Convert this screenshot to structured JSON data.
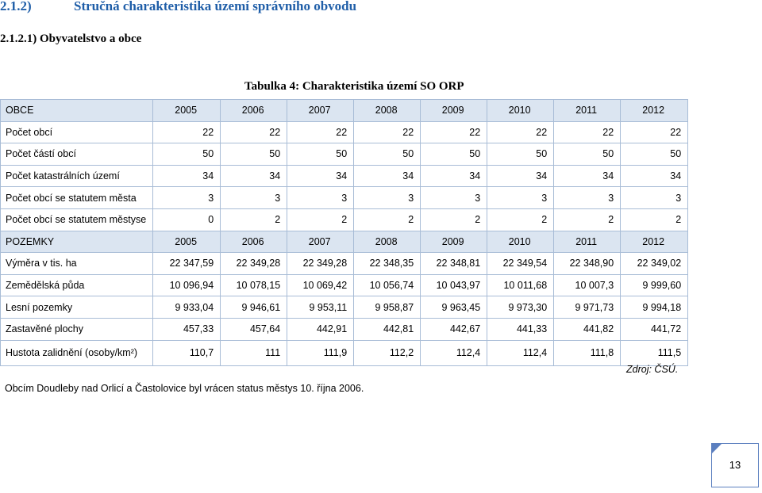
{
  "heading": {
    "number": "2.1.2)",
    "title": "Stručná charakteristika území správního obvodu"
  },
  "subheading": "2.1.2.1)  Obyvatelstvo a obce",
  "table_caption": "Tabulka 4: Charakteristika území SO ORP",
  "table": {
    "rows": [
      {
        "header": true,
        "label": "OBCE",
        "values": [
          "2005",
          "2006",
          "2007",
          "2008",
          "2009",
          "2010",
          "2011",
          "2012"
        ]
      },
      {
        "label": "Počet obcí",
        "values": [
          "22",
          "22",
          "22",
          "22",
          "22",
          "22",
          "22",
          "22"
        ]
      },
      {
        "label": "Počet částí obcí",
        "values": [
          "50",
          "50",
          "50",
          "50",
          "50",
          "50",
          "50",
          "50"
        ]
      },
      {
        "label": "Počet katastrálních území",
        "values": [
          "34",
          "34",
          "34",
          "34",
          "34",
          "34",
          "34",
          "34"
        ]
      },
      {
        "label": "Počet obcí se statutem města",
        "values": [
          "3",
          "3",
          "3",
          "3",
          "3",
          "3",
          "3",
          "3"
        ]
      },
      {
        "label": "Počet obcí se statutem městyse",
        "values": [
          "0",
          "2",
          "2",
          "2",
          "2",
          "2",
          "2",
          "2"
        ]
      },
      {
        "header": true,
        "label": "POZEMKY",
        "values": [
          "2005",
          "2006",
          "2007",
          "2008",
          "2009",
          "2010",
          "2011",
          "2012"
        ]
      },
      {
        "label": "Výměra v tis. ha",
        "values": [
          "22 347,59",
          "22 349,28",
          "22 349,28",
          "22 348,35",
          "22 348,81",
          "22 349,54",
          "22 348,90",
          "22 349,02"
        ]
      },
      {
        "label": "Zemědělská půda",
        "values": [
          "10 096,94",
          "10 078,15",
          "10 069,42",
          "10 056,74",
          "10 043,97",
          "10 011,68",
          "10 007,3",
          "9 999,60"
        ]
      },
      {
        "label": "Lesní pozemky",
        "values": [
          "9 933,04",
          "9 946,61",
          "9 953,11",
          "9 958,87",
          "9 963,45",
          "9 973,30",
          "9 971,73",
          "9 994,18"
        ]
      },
      {
        "label": "Zastavěné plochy",
        "values": [
          "457,33",
          "457,64",
          "442,91",
          "442,81",
          "442,67",
          "441,33",
          "441,82",
          "441,72"
        ]
      },
      {
        "label": "Hustota zalidnění (osoby/km²)",
        "values": [
          "110,7",
          "111",
          "111,9",
          "112,2",
          "112,4",
          "112,4",
          "111,8",
          "111,5"
        ]
      }
    ]
  },
  "source": "Zdroj: ČSÚ.",
  "note": "Obcím Doudleby nad Orlicí a Častolovice byl vrácen status městys 10. října 2006.",
  "page_number": "13",
  "colors": {
    "heading": "#1f5ea8",
    "table_header_bg": "#dbe5f1",
    "border": "#a8bcd6",
    "page_box": "#5b7fbf"
  }
}
